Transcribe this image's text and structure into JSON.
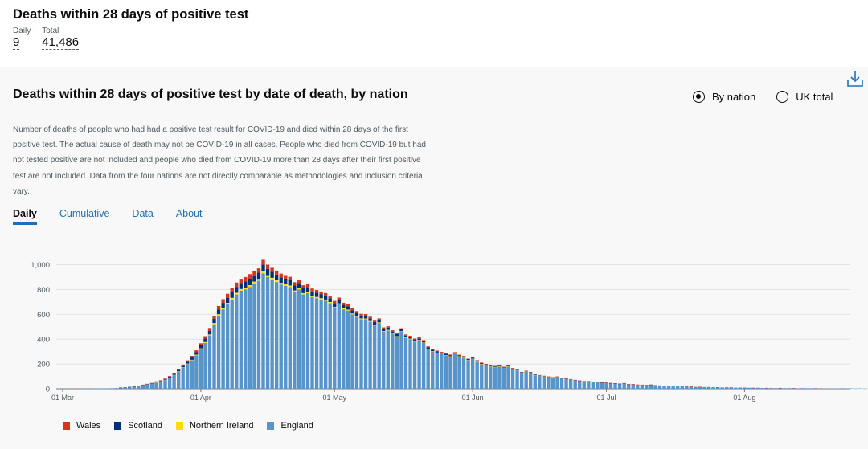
{
  "header": {
    "title": "Deaths within 28 days of positive test",
    "daily_label": "Daily",
    "daily_value": "9",
    "total_label": "Total",
    "total_value": "41,486"
  },
  "card": {
    "title": "Deaths within 28 days of positive test by date of death, by nation",
    "description": "Number of deaths of people who had had a positive test result for COVID-19 and died within 28 days of the first positive test. The actual cause of death may not be COVID-19 in all cases. People who died from COVID-19 but had not tested positive are not included and people who died from COVID-19 more than 28 days after their first positive test are not included. Data from the four nations are not directly comparable as methodologies and inclusion criteria vary.",
    "radio_options": [
      {
        "label": "By nation",
        "selected": true
      },
      {
        "label": "UK total",
        "selected": false
      }
    ],
    "tabs": [
      {
        "label": "Daily",
        "active": true
      },
      {
        "label": "Cumulative",
        "active": false
      },
      {
        "label": "Data",
        "active": false
      },
      {
        "label": "About",
        "active": false
      }
    ],
    "download_icon": "download-icon"
  },
  "chart_data": {
    "type": "bar",
    "stacked": true,
    "start_date": "2020-03-01",
    "x_tick_labels": [
      "01 Mar",
      "01 Apr",
      "01 May",
      "01 Jun",
      "01 Jul",
      "01 Aug"
    ],
    "y_ticks": [
      0,
      200,
      400,
      600,
      800,
      1000
    ],
    "y_tick_labels": [
      "0",
      "200",
      "400",
      "600",
      "800",
      "1,000"
    ],
    "ylim": [
      0,
      1000
    ],
    "grid": true,
    "legend_position": "bottom-left",
    "colors": {
      "England": "#5694ca",
      "Northern Ireland": "#ffdd00",
      "Scotland": "#003078",
      "Wales": "#d4351c"
    },
    "series": [
      {
        "name": "England",
        "values": [
          0,
          0,
          0,
          0,
          0,
          1,
          0,
          1,
          2,
          3,
          2,
          4,
          5,
          8,
          10,
          14,
          18,
          22,
          30,
          35,
          42,
          52,
          60,
          72,
          90,
          110,
          140,
          170,
          200,
          230,
          270,
          320,
          370,
          430,
          520,
          590,
          640,
          680,
          720,
          760,
          790,
          800,
          820,
          850,
          870,
          930,
          900,
          880,
          860,
          840,
          830,
          820,
          780,
          800,
          760,
          770,
          740,
          730,
          720,
          710,
          690,
          650,
          680,
          640,
          630,
          600,
          580,
          560,
          560,
          540,
          510,
          530,
          460,
          470,
          440,
          420,
          460,
          410,
          400,
          380,
          390,
          370,
          320,
          300,
          290,
          280,
          270,
          260,
          280,
          260,
          250,
          230,
          240,
          220,
          200,
          190,
          180,
          175,
          180,
          170,
          180,
          160,
          150,
          130,
          140,
          130,
          110,
          105,
          100,
          95,
          90,
          95,
          85,
          80,
          75,
          70,
          65,
          60,
          60,
          55,
          52,
          50,
          48,
          45,
          43,
          40,
          44,
          38,
          35,
          33,
          32,
          30,
          32,
          28,
          27,
          25,
          24,
          22,
          24,
          20,
          19,
          18,
          16,
          15,
          14,
          13,
          13,
          12,
          11,
          10,
          10,
          9,
          10,
          8,
          8,
          7,
          8,
          6,
          6,
          6,
          5,
          6,
          5,
          5,
          4,
          4,
          5,
          4,
          4,
          3,
          4,
          3,
          3,
          3,
          3,
          4,
          3,
          3,
          2,
          3,
          2,
          3,
          2
        ]
      },
      {
        "name": "Northern Ireland",
        "values": [
          0,
          0,
          0,
          0,
          0,
          0,
          0,
          0,
          0,
          0,
          0,
          0,
          0,
          0,
          0,
          0,
          0,
          0,
          0,
          0,
          0,
          1,
          1,
          1,
          1,
          2,
          2,
          3,
          3,
          4,
          5,
          6,
          7,
          8,
          10,
          11,
          12,
          12,
          13,
          14,
          14,
          15,
          15,
          14,
          15,
          16,
          15,
          14,
          14,
          13,
          13,
          12,
          12,
          12,
          11,
          11,
          10,
          10,
          10,
          9,
          9,
          9,
          8,
          8,
          8,
          7,
          7,
          7,
          6,
          6,
          6,
          5,
          5,
          5,
          5,
          4,
          4,
          4,
          4,
          3,
          3,
          3,
          3,
          3,
          2,
          2,
          2,
          2,
          2,
          2,
          2,
          2,
          2,
          1,
          1,
          1,
          1,
          1,
          1,
          1,
          1,
          1,
          1,
          1,
          1,
          1,
          1,
          1,
          1,
          1,
          0,
          1,
          0,
          0,
          1,
          0,
          0,
          0,
          0,
          0,
          1,
          0,
          0,
          0,
          0,
          0,
          0,
          0,
          0,
          0,
          0,
          0,
          0,
          0,
          0,
          0,
          0,
          0,
          0,
          0,
          0,
          0,
          0,
          0,
          0,
          0,
          0,
          0,
          0,
          0,
          0,
          0,
          0,
          0,
          0,
          0,
          0,
          0,
          0,
          0,
          0,
          0,
          0,
          0,
          0,
          0,
          0,
          0,
          0,
          0,
          0,
          0,
          0,
          0,
          0,
          0,
          0,
          0,
          0,
          0,
          0,
          0,
          0
        ]
      },
      {
        "name": "Scotland",
        "values": [
          0,
          0,
          0,
          0,
          0,
          0,
          0,
          0,
          0,
          0,
          0,
          0,
          0,
          1,
          1,
          1,
          1,
          2,
          2,
          3,
          3,
          4,
          5,
          6,
          7,
          9,
          11,
          13,
          15,
          18,
          20,
          24,
          27,
          30,
          33,
          38,
          40,
          42,
          45,
          47,
          48,
          50,
          52,
          48,
          50,
          55,
          50,
          48,
          46,
          45,
          44,
          42,
          40,
          40,
          38,
          37,
          35,
          34,
          33,
          32,
          30,
          30,
          29,
          28,
          27,
          26,
          24,
          23,
          22,
          22,
          21,
          20,
          19,
          18,
          17,
          16,
          15,
          15,
          14,
          14,
          13,
          12,
          12,
          11,
          10,
          10,
          9,
          9,
          8,
          8,
          8,
          7,
          7,
          6,
          6,
          6,
          5,
          5,
          5,
          4,
          4,
          4,
          4,
          3,
          3,
          3,
          3,
          3,
          2,
          2,
          2,
          2,
          2,
          2,
          1,
          1,
          1,
          1,
          1,
          1,
          1,
          1,
          1,
          1,
          1,
          1,
          1,
          0,
          1,
          0,
          0,
          0,
          1,
          0,
          0,
          0,
          0,
          0,
          0,
          0,
          0,
          0,
          0,
          0,
          0,
          0,
          0,
          0,
          0,
          0,
          0,
          0,
          0,
          0,
          0,
          0,
          0,
          0,
          0,
          0,
          0,
          0,
          0,
          0,
          0,
          0,
          0,
          0,
          0,
          0,
          0,
          0,
          0,
          0,
          0,
          0,
          0,
          0,
          0,
          0,
          0,
          0,
          0
        ]
      },
      {
        "name": "Wales",
        "values": [
          0,
          0,
          0,
          0,
          0,
          0,
          0,
          0,
          0,
          0,
          0,
          0,
          0,
          0,
          0,
          0,
          1,
          1,
          1,
          2,
          2,
          3,
          3,
          4,
          5,
          6,
          7,
          9,
          11,
          13,
          15,
          17,
          20,
          22,
          25,
          28,
          30,
          32,
          33,
          35,
          34,
          35,
          37,
          34,
          35,
          38,
          35,
          33,
          32,
          30,
          29,
          28,
          27,
          26,
          25,
          24,
          23,
          22,
          21,
          20,
          19,
          19,
          18,
          17,
          16,
          16,
          15,
          14,
          14,
          13,
          12,
          12,
          11,
          11,
          10,
          10,
          9,
          9,
          9,
          8,
          8,
          7,
          7,
          7,
          6,
          6,
          6,
          5,
          5,
          5,
          5,
          4,
          4,
          4,
          4,
          3,
          3,
          3,
          3,
          3,
          3,
          2,
          2,
          2,
          2,
          2,
          2,
          2,
          2,
          1,
          1,
          1,
          1,
          1,
          1,
          1,
          1,
          1,
          1,
          1,
          1,
          1,
          1,
          1,
          1,
          1,
          1,
          1,
          1,
          1,
          1,
          1,
          1,
          1,
          0,
          1,
          1,
          0,
          1,
          0,
          1,
          1,
          0,
          1,
          0,
          1,
          0,
          1,
          0,
          1,
          1,
          0,
          0,
          1,
          0,
          1,
          0,
          0,
          1,
          0,
          0,
          1,
          0,
          0,
          1,
          0,
          0,
          0,
          0,
          1,
          0,
          0,
          0,
          0,
          0,
          0,
          0,
          0,
          0,
          0,
          0,
          0,
          0
        ]
      }
    ],
    "legend_order": [
      "Wales",
      "Scotland",
      "Northern Ireland",
      "England"
    ]
  }
}
